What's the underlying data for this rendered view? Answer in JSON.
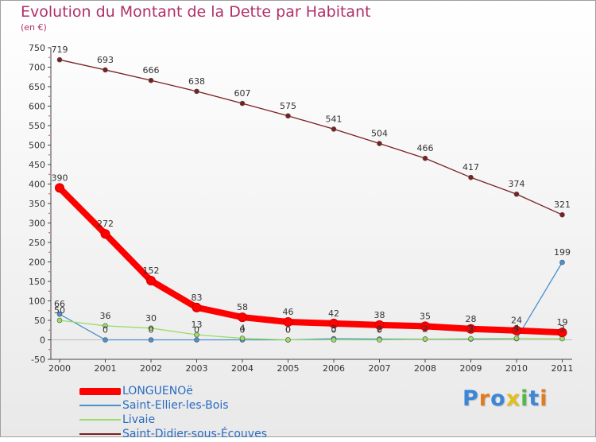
{
  "title": "Evolution du Montant de la Dette par Habitant",
  "subtitle": "(en €)",
  "brand": "Proxiti",
  "chart_data": {
    "type": "line",
    "x": [
      "2000",
      "2001",
      "2002",
      "2003",
      "2004",
      "2005",
      "2006",
      "2007",
      "2008",
      "2009",
      "2010",
      "2011"
    ],
    "ylim": [
      -50,
      750
    ],
    "yticks": [
      -50,
      0,
      50,
      100,
      150,
      200,
      250,
      300,
      350,
      400,
      450,
      500,
      550,
      600,
      650,
      700,
      750
    ],
    "grid": false,
    "legend": "bottom-left",
    "series": [
      {
        "name": "LONGUENOë",
        "color": "#ff0000",
        "values": [
          390,
          272,
          152,
          83,
          58,
          46,
          42,
          38,
          35,
          28,
          24,
          19
        ],
        "labels": [
          "390",
          "272",
          "152",
          "83",
          "58",
          "46",
          "42",
          "38",
          "35",
          "28",
          "24",
          "19"
        ]
      },
      {
        "name": "Saint-Ellier-les-Bois",
        "color": "#4a90d0",
        "values": [
          66,
          0,
          0,
          0,
          0,
          0,
          3,
          2,
          2,
          2,
          3,
          199
        ],
        "labels": [
          "66",
          "0",
          "0",
          "0",
          "0",
          "0",
          "3",
          "2",
          "2",
          "2",
          "3",
          "199"
        ]
      },
      {
        "name": "Livaie",
        "color": "#99dd66",
        "values": [
          50,
          36,
          30,
          13,
          4,
          0,
          0,
          0,
          2,
          3,
          4,
          3
        ],
        "labels": [
          "50",
          "36",
          "30",
          "13",
          "4",
          "0",
          "0",
          "0",
          "2",
          "3",
          "4",
          "3"
        ]
      },
      {
        "name": "Saint-Didier-sous-Écouves",
        "color": "#7a2020",
        "values": [
          719,
          693,
          666,
          638,
          607,
          575,
          541,
          504,
          466,
          417,
          374,
          321
        ],
        "labels": [
          "719",
          "693",
          "666",
          "638",
          "607",
          "575",
          "541",
          "504",
          "466",
          "417",
          "374",
          "321"
        ]
      }
    ]
  }
}
